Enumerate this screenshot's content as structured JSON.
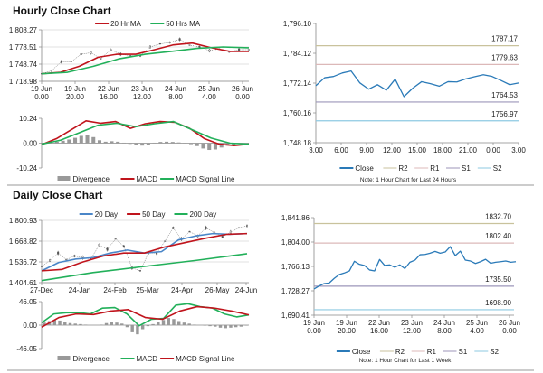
{
  "hourly_title": "Hourly Close Chart",
  "daily_title": "Daily Close Chart",
  "colors": {
    "close": "#2a7ab8",
    "ma20h": "#c0141c",
    "ma50h": "#22b05a",
    "d20": "#4a86c8",
    "d50": "#c0141c",
    "d200": "#22b05a",
    "R2": "#c9c29c",
    "R1": "#dcb8b8",
    "S1": "#9c96ba",
    "S2": "#8ecae2",
    "candle": "#555555",
    "divergence": "#999999"
  },
  "chart_data": [
    {
      "id": "hourly_price",
      "type": "line",
      "ylim": [
        1718.98,
        1808.27
      ],
      "ytick_labels": [
        "1,808.27",
        "1,778.51",
        "1,748.74",
        "1,718.98"
      ],
      "xtick_labels": [
        [
          "19 Jun",
          "0.00"
        ],
        [
          "19 Jun",
          "20.00"
        ],
        [
          "22 Jun",
          "16.00"
        ],
        [
          "23 Jun",
          "12.00"
        ],
        [
          "24 Jun",
          "8.00"
        ],
        [
          "25 Jun",
          "4.00"
        ],
        [
          "26 Jun",
          "0.00"
        ]
      ],
      "grid": true,
      "legend": [
        {
          "label": "20 Hr MA",
          "color": "ma20h"
        },
        {
          "label": "50 Hrs MA",
          "color": "ma50h"
        }
      ],
      "series": [
        {
          "key": "candles",
          "color": "candle",
          "values": [
            1732.0,
            1737.2,
            1752.9,
            1752.9,
            1765.9,
            1768.5,
            1758.1,
            1773.8,
            1765.9,
            1763.3,
            1763.3,
            1778.5,
            1783.8,
            1786.4,
            1791.7,
            1781.5,
            1778.5,
            1772.2,
            1775.0,
            1770.2,
            1773.8,
            1773.8
          ]
        },
        {
          "name": "20 Hr MA",
          "color": "ma20h",
          "values": [
            1732.0,
            1734.6,
            1745.0,
            1760.7,
            1765.9,
            1765.9,
            1773.8,
            1782.2,
            1785.3,
            1777.1,
            1770.8,
            1770.8
          ]
        },
        {
          "name": "50 Hrs MA",
          "color": "ma50h",
          "values": [
            1732.0,
            1734.6,
            1745.0,
            1758.1,
            1765.9,
            1770.8,
            1776.0,
            1778.5,
            1777.1
          ]
        }
      ]
    },
    {
      "id": "hourly_macd",
      "type": "line",
      "ylim": [
        -10.24,
        10.24
      ],
      "ytick_labels": [
        "10.24",
        "0.00",
        "-10.24"
      ],
      "legend": [
        {
          "label": "Divergence",
          "color": "divergence",
          "kind": "bar"
        },
        {
          "label": "MACD",
          "color": "ma20h"
        },
        {
          "label": "MACD Signal Line",
          "color": "ma50h"
        }
      ],
      "divergence": [
        0,
        0.3,
        0.6,
        1.0,
        1.5,
        2.2,
        3.0,
        3.3,
        2.5,
        1.2,
        0.6,
        0.8,
        0.6,
        0.2,
        -0.3,
        -0.8,
        -1.0,
        -0.6,
        0.2,
        0.5,
        0.6,
        0.5,
        0.3,
        0.1,
        -0.4,
        -1.2,
        -2.2,
        -2.8,
        -2.6,
        -1.8,
        -1.0,
        -0.6,
        -0.3,
        0
      ],
      "series": [
        {
          "name": "MACD",
          "color": "ma20h",
          "values": [
            -0.6,
            1.85,
            5.5,
            9.2,
            8.2,
            8.9,
            6.1,
            8.0,
            8.9,
            8.6,
            6.1,
            1.85,
            -0.4,
            -1.0,
            -0.4
          ]
        },
        {
          "name": "MACD Signal Line",
          "color": "ma50h",
          "values": [
            -0.4,
            1.2,
            4.3,
            7.4,
            8.2,
            6.8,
            8.0,
            8.9,
            5.5,
            2.1,
            0.0,
            -0.4
          ]
        }
      ]
    },
    {
      "id": "hourly_24h",
      "type": "line",
      "ylim": [
        1748.18,
        1796.1
      ],
      "ytick_labels": [
        "1,796.10",
        "1,784.12",
        "1,772.14",
        "1,760.16",
        "1,748.18"
      ],
      "xtick_labels": [
        "3.00",
        "6.00",
        "9.00",
        "12.00",
        "15.00",
        "18.00",
        "21.00",
        "0.00",
        "3.00"
      ],
      "levels": [
        {
          "name": "R2",
          "value": 1787.17,
          "label": "1787.17"
        },
        {
          "name": "R1",
          "value": 1779.63,
          "label": "1779.63"
        },
        {
          "name": "S1",
          "value": 1764.53,
          "label": "1764.53"
        },
        {
          "name": "S2",
          "value": 1756.97,
          "label": "1756.97"
        }
      ],
      "legend": [
        {
          "label": "Close",
          "color": "close",
          "thick": true
        },
        {
          "label": "R2",
          "color": "R2"
        },
        {
          "label": "R1",
          "color": "R1"
        },
        {
          "label": "S1",
          "color": "S1"
        },
        {
          "label": "S2",
          "color": "S2"
        }
      ],
      "note": "Note: 1 Hour Chart for Last 24 Hours",
      "series": [
        {
          "name": "Close",
          "color": "close",
          "values": [
            1771.1,
            1774.3,
            1774.8,
            1776.2,
            1777.0,
            1772.2,
            1769.7,
            1771.5,
            1769.3,
            1773.7,
            1766.7,
            1770.1,
            1772.7,
            1771.9,
            1770.9,
            1772.7,
            1772.6,
            1773.8,
            1774.7,
            1775.5,
            1774.8,
            1773.2,
            1771.5,
            1772.2
          ]
        }
      ]
    },
    {
      "id": "daily_price",
      "type": "line",
      "ylim": [
        1404.61,
        1800.93
      ],
      "ytick_labels": [
        "1,800.93",
        "1,668.82",
        "1,536.72",
        "1,404.61"
      ],
      "xtick_labels": [
        "27-Dec",
        "24-Jan",
        "24-Feb",
        "25-Mar",
        "24-Apr",
        "26-May",
        "24-Jun"
      ],
      "grid": true,
      "legend": [
        {
          "label": "20 Day",
          "color": "d20"
        },
        {
          "label": "50 Day",
          "color": "d50"
        },
        {
          "label": "200 Day",
          "color": "d200"
        }
      ],
      "series": [
        {
          "key": "candles",
          "color": "candle",
          "values": [
            1508,
            1546,
            1593,
            1551,
            1574,
            1564,
            1555,
            1645,
            1617,
            1683,
            1636,
            1499,
            1480,
            1593,
            1593,
            1668,
            1753,
            1683,
            1729,
            1702,
            1753,
            1725,
            1696,
            1725,
            1753,
            1766
          ]
        },
        {
          "name": "20 Day",
          "color": "d20",
          "values": [
            1480,
            1533,
            1555,
            1564,
            1593,
            1612,
            1593,
            1602,
            1677,
            1702,
            1717,
            1712,
            1717
          ]
        },
        {
          "name": "50 Day",
          "color": "d50",
          "values": [
            1480,
            1489,
            1536,
            1574,
            1593,
            1593,
            1632,
            1660,
            1688,
            1712,
            1717
          ]
        },
        {
          "name": "200 Day",
          "color": "d200",
          "values": [
            1418,
            1469,
            1508,
            1546,
            1589
          ]
        }
      ]
    },
    {
      "id": "daily_macd",
      "type": "line",
      "ylim": [
        -46.05,
        46.05
      ],
      "ytick_labels": [
        "46.05",
        "0.00",
        "-46.05"
      ],
      "legend": [
        {
          "label": "Divergence",
          "color": "divergence",
          "kind": "bar"
        },
        {
          "label": "MACD",
          "color": "d200"
        },
        {
          "label": "MACD Signal Line",
          "color": "d50"
        }
      ],
      "divergence": [
        5,
        8,
        10,
        9,
        6,
        4,
        3,
        2,
        1,
        0,
        0,
        1,
        4,
        6,
        5,
        3,
        -4,
        -14,
        -18,
        -8,
        -2,
        2,
        6,
        10,
        14,
        12,
        8,
        5,
        3,
        1,
        0,
        -1,
        -2,
        -3,
        -5,
        -6,
        -5,
        -4,
        -3,
        -1
      ],
      "series": [
        {
          "name": "MACD",
          "color": "d200",
          "values": [
            4.6,
            21.9,
            24.2,
            24.7,
            21.9,
            33.4,
            34.5,
            21.9,
            -1.2,
            11.5,
            13.2,
            39.1,
            42.0,
            36.2,
            33.4,
            21.9,
            16.1,
            20.1
          ]
        },
        {
          "name": "MACD Signal Line",
          "color": "d50",
          "values": [
            -4,
            15,
            21.9,
            20.7,
            27.6,
            30.5,
            15,
            11.5,
            27.6,
            36.2,
            33.4,
            27.6,
            20.1
          ]
        }
      ]
    },
    {
      "id": "hourly_week",
      "type": "line",
      "ylim": [
        1690.41,
        1841.86
      ],
      "ytick_labels": [
        "1,841.86",
        "1,804.00",
        "1,766.13",
        "1,728.27",
        "1,690.41"
      ],
      "xtick_labels": [
        [
          "19 Jun",
          "0.00"
        ],
        [
          "19 Jun",
          "20.00"
        ],
        [
          "22 Jun",
          "16.00"
        ],
        [
          "23 Jun",
          "12.00"
        ],
        [
          "24 Jun",
          "8.00"
        ],
        [
          "25 Jun",
          "4.00"
        ],
        [
          "26 Jun",
          "0.00"
        ]
      ],
      "levels": [
        {
          "name": "R2",
          "value": 1832.7,
          "label": "1832.70"
        },
        {
          "name": "R1",
          "value": 1802.4,
          "label": "1802.40"
        },
        {
          "name": "S1",
          "value": 1735.5,
          "label": "1735.50"
        },
        {
          "name": "S2",
          "value": 1698.9,
          "label": "1698.90"
        }
      ],
      "legend": [
        {
          "label": "Close",
          "color": "close",
          "thick": true
        },
        {
          "label": "R2",
          "color": "R2"
        },
        {
          "label": "R1",
          "color": "R1"
        },
        {
          "label": "S1",
          "color": "S1"
        },
        {
          "label": "S2",
          "color": "S2"
        }
      ],
      "note": "Note: 1 Hour Chart for Last 1 Week",
      "series": [
        {
          "name": "Close",
          "color": "close",
          "values": [
            1731.1,
            1735.7,
            1739.5,
            1740.4,
            1747.5,
            1753.5,
            1755.9,
            1759.1,
            1774.1,
            1769.4,
            1767.6,
            1760.6,
            1759.1,
            1776.9,
            1767.6,
            1768.5,
            1764.8,
            1768.5,
            1762.8,
            1772.6,
            1775.9,
            1784.3,
            1784.7,
            1786.6,
            1789.4,
            1786.6,
            1788.5,
            1796.9,
            1782.9,
            1789.9,
            1775.9,
            1774.5,
            1770.7,
            1773.5,
            1777.2,
            1771.1,
            1772.6,
            1773.5,
            1774.5,
            1772.6,
            1773.5
          ]
        }
      ]
    }
  ]
}
